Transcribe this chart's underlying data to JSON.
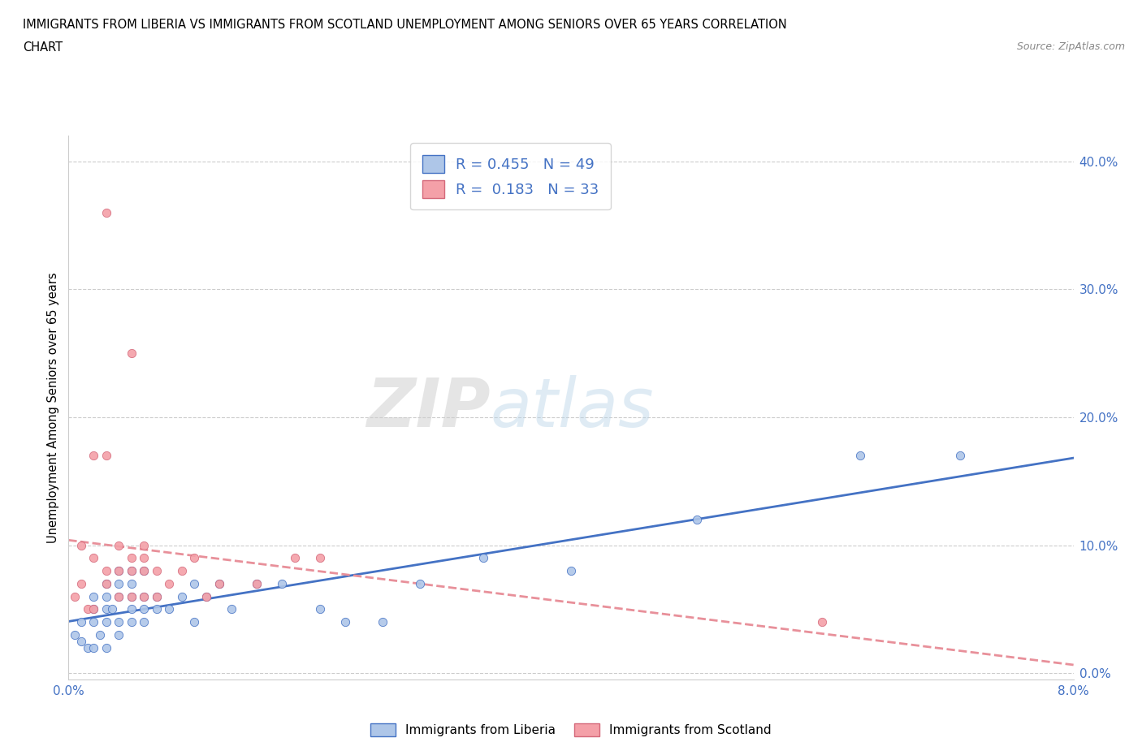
{
  "title_line1": "IMMIGRANTS FROM LIBERIA VS IMMIGRANTS FROM SCOTLAND UNEMPLOYMENT AMONG SENIORS OVER 65 YEARS CORRELATION",
  "title_line2": "CHART",
  "source_text": "Source: ZipAtlas.com",
  "ylabel": "Unemployment Among Seniors over 65 years",
  "xmin": 0.0,
  "xmax": 0.08,
  "ymin": -0.005,
  "ymax": 0.42,
  "yticks": [
    0.0,
    0.1,
    0.2,
    0.3,
    0.4
  ],
  "ytick_labels": [
    "0.0%",
    "10.0%",
    "20.0%",
    "30.0%",
    "40.0%"
  ],
  "xticks": [
    0.0,
    0.02,
    0.04,
    0.06,
    0.08
  ],
  "xtick_labels": [
    "0.0%",
    "",
    "",
    "",
    "8.0%"
  ],
  "liberia_color": "#aec6e8",
  "scotland_color": "#f4a0a8",
  "liberia_edge_color": "#4472c4",
  "scotland_edge_color": "#d4687a",
  "trend_liberia_color": "#4472c4",
  "trend_scotland_color": "#e8909a",
  "R_liberia": 0.455,
  "N_liberia": 49,
  "R_scotland": 0.183,
  "N_scotland": 33,
  "watermark_zip": "ZIP",
  "watermark_atlas": "atlas",
  "liberia_x": [
    0.0005,
    0.001,
    0.001,
    0.0015,
    0.002,
    0.002,
    0.002,
    0.002,
    0.0025,
    0.003,
    0.003,
    0.003,
    0.003,
    0.003,
    0.0035,
    0.004,
    0.004,
    0.004,
    0.004,
    0.004,
    0.005,
    0.005,
    0.005,
    0.005,
    0.005,
    0.006,
    0.006,
    0.006,
    0.006,
    0.007,
    0.007,
    0.008,
    0.009,
    0.01,
    0.01,
    0.011,
    0.012,
    0.013,
    0.015,
    0.017,
    0.02,
    0.022,
    0.025,
    0.028,
    0.033,
    0.04,
    0.05,
    0.063,
    0.071
  ],
  "liberia_y": [
    0.03,
    0.025,
    0.04,
    0.02,
    0.02,
    0.04,
    0.05,
    0.06,
    0.03,
    0.02,
    0.04,
    0.05,
    0.06,
    0.07,
    0.05,
    0.03,
    0.04,
    0.06,
    0.07,
    0.08,
    0.04,
    0.05,
    0.06,
    0.07,
    0.08,
    0.04,
    0.05,
    0.06,
    0.08,
    0.05,
    0.06,
    0.05,
    0.06,
    0.04,
    0.07,
    0.06,
    0.07,
    0.05,
    0.07,
    0.07,
    0.05,
    0.04,
    0.04,
    0.07,
    0.09,
    0.08,
    0.12,
    0.17,
    0.17
  ],
  "scotland_x": [
    0.0005,
    0.001,
    0.001,
    0.0015,
    0.002,
    0.002,
    0.002,
    0.003,
    0.003,
    0.003,
    0.003,
    0.004,
    0.004,
    0.004,
    0.005,
    0.005,
    0.005,
    0.005,
    0.006,
    0.006,
    0.006,
    0.006,
    0.007,
    0.007,
    0.008,
    0.009,
    0.01,
    0.011,
    0.012,
    0.015,
    0.018,
    0.02,
    0.06
  ],
  "scotland_y": [
    0.06,
    0.07,
    0.1,
    0.05,
    0.05,
    0.09,
    0.17,
    0.07,
    0.08,
    0.17,
    0.36,
    0.06,
    0.08,
    0.1,
    0.06,
    0.08,
    0.09,
    0.25,
    0.06,
    0.08,
    0.09,
    0.1,
    0.06,
    0.08,
    0.07,
    0.08,
    0.09,
    0.06,
    0.07,
    0.07,
    0.09,
    0.09,
    0.04
  ]
}
